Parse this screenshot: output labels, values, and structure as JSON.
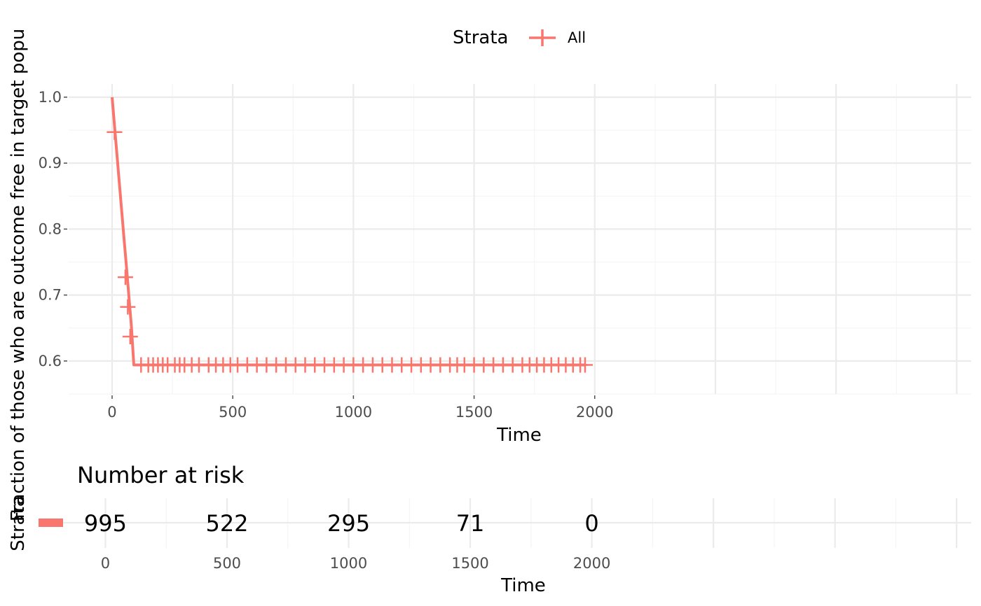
{
  "colors": {
    "series": "#F8766D",
    "grid_major": "#EBEBEB",
    "grid_minor": "#F5F5F5",
    "tick": "#4D4D4D"
  },
  "legend": {
    "title": "Strata",
    "label": "All",
    "position": "top"
  },
  "chart_data": [
    {
      "type": "line",
      "subtype": "kaplan-meier",
      "title": "",
      "xlabel": "Time",
      "ylabel": "Fraction of those who are outcome free in target popu",
      "xlim": [
        -180,
        3560
      ],
      "ylim": [
        0.55,
        1.02
      ],
      "x_ticks": [
        0,
        500,
        1000,
        1500,
        2000
      ],
      "x_tick_labels": [
        "0",
        "500",
        "1000",
        "1500",
        "2000"
      ],
      "y_ticks": [
        0.6,
        0.7,
        0.8,
        0.9,
        1.0
      ],
      "y_tick_labels": [
        "0.6",
        "0.7",
        "0.8",
        "0.9",
        "1.0"
      ],
      "grid": true,
      "series": [
        {
          "name": "All",
          "x": [
            0,
            10,
            20,
            30,
            40,
            50,
            60,
            70,
            80,
            90,
            1960
          ],
          "y": [
            1.0,
            0.957,
            0.913,
            0.87,
            0.826,
            0.783,
            0.74,
            0.696,
            0.653,
            0.594,
            0.594
          ],
          "censor_x": [
            10,
            55,
            65,
            75,
            120,
            150,
            170,
            190,
            210,
            230,
            260,
            280,
            300,
            330,
            360,
            400,
            430,
            460,
            490,
            520,
            560,
            600,
            640,
            680,
            720,
            760,
            800,
            840,
            880,
            920,
            960,
            1000,
            1040,
            1080,
            1120,
            1160,
            1200,
            1240,
            1280,
            1320,
            1360,
            1400,
            1430,
            1460,
            1500,
            1540,
            1580,
            1620,
            1660,
            1700,
            1730,
            1760,
            1790,
            1820,
            1850,
            1880,
            1910,
            1940,
            1960
          ],
          "censor_y": [
            0.947,
            0.727,
            0.682,
            0.637,
            0.594,
            0.594,
            0.594,
            0.594,
            0.594,
            0.594,
            0.594,
            0.594,
            0.594,
            0.594,
            0.594,
            0.594,
            0.594,
            0.594,
            0.594,
            0.594,
            0.594,
            0.594,
            0.594,
            0.594,
            0.594,
            0.594,
            0.594,
            0.594,
            0.594,
            0.594,
            0.594,
            0.594,
            0.594,
            0.594,
            0.594,
            0.594,
            0.594,
            0.594,
            0.594,
            0.594,
            0.594,
            0.594,
            0.594,
            0.594,
            0.594,
            0.594,
            0.594,
            0.594,
            0.594,
            0.594,
            0.594,
            0.594,
            0.594,
            0.594,
            0.594,
            0.594,
            0.594,
            0.594,
            0.594
          ]
        }
      ]
    },
    {
      "type": "table",
      "title": "Number at risk",
      "xlabel": "Time",
      "ylabel": "Strata",
      "xlim": [
        -180,
        3560
      ],
      "x_ticks": [
        0,
        500,
        1000,
        1500,
        2000
      ],
      "x_tick_labels": [
        "0",
        "500",
        "1000",
        "1500",
        "2000"
      ],
      "rows": [
        {
          "name": "All",
          "times": [
            0,
            500,
            1000,
            1500,
            2000
          ],
          "values": [
            "995",
            "522",
            "295",
            "71",
            "0"
          ]
        }
      ]
    }
  ]
}
